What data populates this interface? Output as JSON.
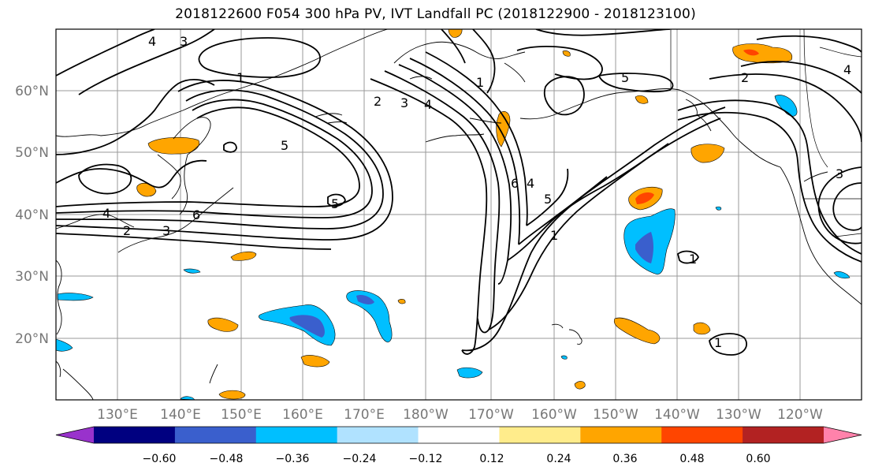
{
  "title": "2018122600 F054 300 hPa PV, IVT Landfall PC (2018122900 - 2018123100)",
  "lat_labels": [
    "60°N",
    "50°N",
    "40°N",
    "30°N",
    "20°N"
  ],
  "lon_labels": [
    "130°E",
    "140°E",
    "150°E",
    "160°E",
    "170°E",
    "180°W",
    "170°W",
    "160°W",
    "150°W",
    "140°W",
    "130°W",
    "120°W"
  ],
  "colorbar": {
    "colors": [
      "#9932cc",
      "#000080",
      "#3a5fcd",
      "#00bfff",
      "#b0e2ff",
      "#ffffff",
      "#ffec8b",
      "#ffa500",
      "#ff4500",
      "#b22222",
      "#ff82ab"
    ],
    "tick_labels": [
      "−0.60",
      "−0.48",
      "−0.36",
      "−0.24",
      "−0.12",
      "0.12",
      "0.24",
      "0.36",
      "0.48",
      "0.60"
    ]
  },
  "contour_labels": [
    "4",
    "3",
    "1",
    "2",
    "3",
    "4",
    "1",
    "5",
    "2",
    "3",
    "4",
    "5",
    "6",
    "5",
    "6",
    "4",
    "5",
    "1",
    "1",
    "1",
    "2",
    "3",
    "4"
  ]
}
